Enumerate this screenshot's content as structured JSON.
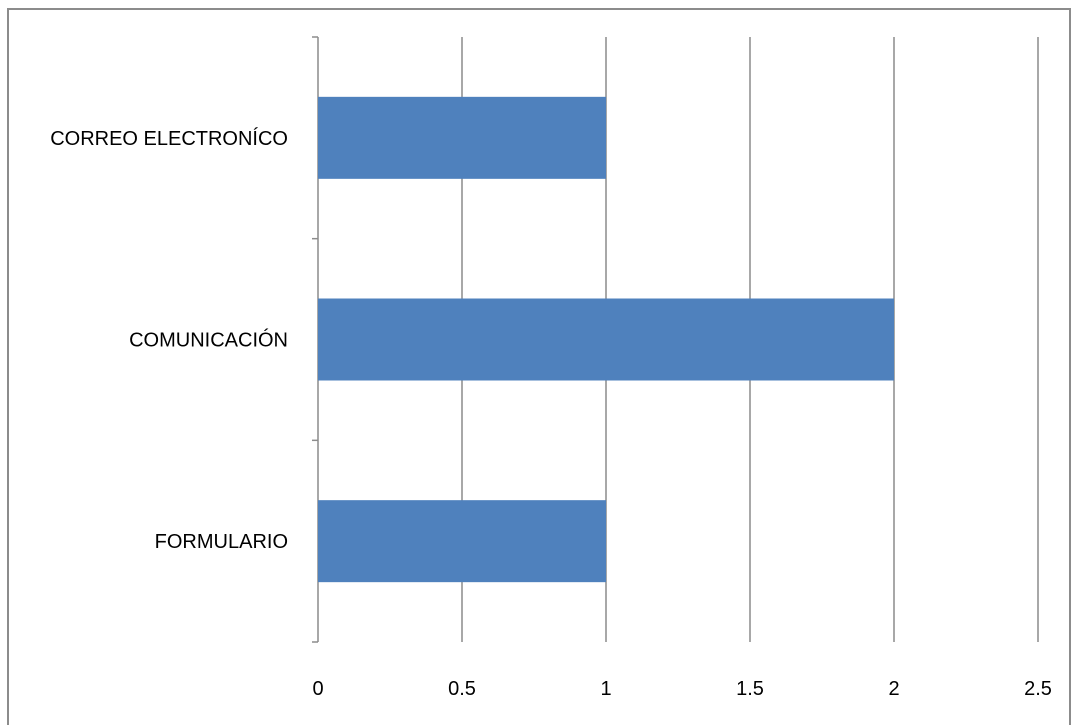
{
  "chart_data": {
    "type": "bar",
    "orientation": "horizontal",
    "categories": [
      "FORMULARIO",
      "COMUNICACIÓN",
      "CORREO ELECTRONÍCO"
    ],
    "values": [
      1,
      2,
      1
    ],
    "xlim": [
      0,
      2.5
    ],
    "xticks": [
      0,
      0.5,
      1,
      1.5,
      2,
      2.5
    ],
    "tick_labels": [
      "0",
      "0.5",
      "1",
      "1.5",
      "2",
      "2.5"
    ],
    "grid": "vertical",
    "legend": "none",
    "bar_color": "#4f81bd",
    "grid_color": "#8c8c8c"
  }
}
